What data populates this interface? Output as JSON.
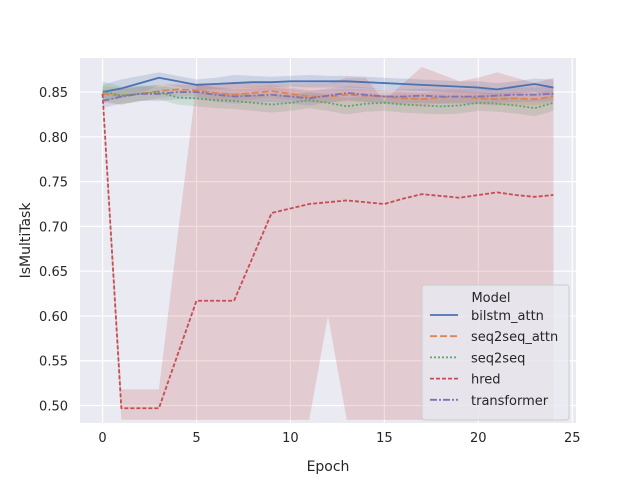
{
  "chart_data": {
    "type": "line",
    "title": "",
    "xlabel": "Epoch",
    "ylabel": "IsMultiTask",
    "xlim": [
      -1.2,
      25.2
    ],
    "ylim": [
      0.4805,
      0.888
    ],
    "xticks": [
      0,
      5,
      10,
      15,
      20,
      25
    ],
    "yticks": [
      0.5,
      0.55,
      0.6,
      0.65,
      0.7,
      0.75,
      0.8,
      0.85
    ],
    "ytick_labels": [
      "0.50",
      "0.55",
      "0.60",
      "0.65",
      "0.70",
      "0.75",
      "0.80",
      "0.85"
    ],
    "grid": true,
    "background": "#eaeaf2",
    "legend": {
      "title": "Model",
      "position": "lower-right"
    },
    "x": [
      0,
      1,
      2,
      3,
      4,
      5,
      6,
      7,
      8,
      9,
      10,
      11,
      12,
      13,
      14,
      15,
      16,
      17,
      18,
      19,
      20,
      21,
      22,
      23,
      24
    ],
    "series": [
      {
        "name": "bilstm_attn",
        "color": "#4c72b0",
        "dash": "",
        "values": [
          0.85,
          0.854,
          0.86,
          0.866,
          0.862,
          0.858,
          0.859,
          0.86,
          0.861,
          0.861,
          0.862,
          0.862,
          0.862,
          0.862,
          0.861,
          0.86,
          0.859,
          0.858,
          0.857,
          0.856,
          0.855,
          0.853,
          0.856,
          0.859,
          0.855
        ],
        "lower": [
          0.84,
          0.843,
          0.848,
          0.858,
          0.856,
          0.852,
          0.853,
          0.854,
          0.855,
          0.855,
          0.856,
          0.855,
          0.855,
          0.855,
          0.854,
          0.853,
          0.852,
          0.851,
          0.85,
          0.849,
          0.848,
          0.846,
          0.848,
          0.85,
          0.846
        ],
        "upper": [
          0.858,
          0.864,
          0.868,
          0.872,
          0.868,
          0.864,
          0.866,
          0.869,
          0.868,
          0.867,
          0.868,
          0.869,
          0.868,
          0.868,
          0.867,
          0.866,
          0.865,
          0.864,
          0.863,
          0.862,
          0.862,
          0.86,
          0.862,
          0.865,
          0.864
        ]
      },
      {
        "name": "seq2seq_attn",
        "color": "#dd8452",
        "dash": "7 3",
        "values": [
          0.848,
          0.846,
          0.848,
          0.851,
          0.853,
          0.852,
          0.849,
          0.847,
          0.849,
          0.851,
          0.848,
          0.845,
          0.845,
          0.847,
          0.846,
          0.845,
          0.843,
          0.842,
          0.844,
          0.845,
          0.843,
          0.842,
          0.843,
          0.842,
          0.845
        ],
        "lower": [
          0.838,
          0.836,
          0.84,
          0.843,
          0.846,
          0.845,
          0.842,
          0.84,
          0.842,
          0.844,
          0.841,
          0.838,
          0.838,
          0.84,
          0.839,
          0.838,
          0.836,
          0.835,
          0.837,
          0.838,
          0.836,
          0.835,
          0.836,
          0.835,
          0.838
        ],
        "upper": [
          0.856,
          0.855,
          0.856,
          0.858,
          0.86,
          0.859,
          0.856,
          0.854,
          0.856,
          0.858,
          0.855,
          0.852,
          0.852,
          0.854,
          0.853,
          0.852,
          0.85,
          0.849,
          0.851,
          0.852,
          0.85,
          0.849,
          0.85,
          0.849,
          0.852
        ]
      },
      {
        "name": "seq2seq",
        "color": "#55a868",
        "dash": "2 2",
        "values": [
          0.851,
          0.846,
          0.848,
          0.85,
          0.844,
          0.843,
          0.841,
          0.84,
          0.838,
          0.836,
          0.838,
          0.841,
          0.838,
          0.834,
          0.837,
          0.838,
          0.836,
          0.835,
          0.834,
          0.835,
          0.838,
          0.837,
          0.835,
          0.832,
          0.838
        ],
        "lower": [
          0.84,
          0.836,
          0.84,
          0.842,
          0.836,
          0.834,
          0.832,
          0.831,
          0.829,
          0.827,
          0.829,
          0.832,
          0.829,
          0.825,
          0.828,
          0.829,
          0.827,
          0.826,
          0.825,
          0.826,
          0.829,
          0.828,
          0.826,
          0.823,
          0.829
        ],
        "upper": [
          0.862,
          0.856,
          0.857,
          0.858,
          0.853,
          0.852,
          0.85,
          0.849,
          0.847,
          0.845,
          0.847,
          0.85,
          0.847,
          0.843,
          0.846,
          0.847,
          0.845,
          0.844,
          0.843,
          0.844,
          0.847,
          0.846,
          0.844,
          0.841,
          0.847
        ]
      },
      {
        "name": "hred",
        "color": "#c44e52",
        "dash": "4 2",
        "values": [
          0.848,
          0.497,
          0.497,
          0.497,
          0.557,
          0.617,
          0.617,
          0.617,
          0.666,
          0.715,
          0.72,
          0.725,
          0.727,
          0.729,
          0.727,
          0.725,
          0.731,
          0.736,
          0.734,
          0.732,
          0.735,
          0.738,
          0.735,
          0.733,
          0.735
        ],
        "lower": [
          0.84,
          0.484,
          0.484,
          0.484,
          0.484,
          0.484,
          0.484,
          0.484,
          0.484,
          0.484,
          0.484,
          0.484,
          0.6,
          0.484,
          0.484,
          0.484,
          0.484,
          0.484,
          0.484,
          0.484,
          0.484,
          0.484,
          0.484,
          0.484,
          0.484
        ],
        "upper": [
          0.856,
          0.518,
          0.518,
          0.518,
          0.69,
          0.86,
          0.86,
          0.86,
          0.86,
          0.86,
          0.86,
          0.86,
          0.86,
          0.866,
          0.866,
          0.84,
          0.86,
          0.878,
          0.87,
          0.862,
          0.866,
          0.872,
          0.866,
          0.86,
          0.866
        ]
      },
      {
        "name": "transformer",
        "color": "#8172b3",
        "dash": "7 2 2 2",
        "values": [
          0.84,
          0.845,
          0.848,
          0.848,
          0.85,
          0.85,
          0.847,
          0.845,
          0.846,
          0.847,
          0.845,
          0.843,
          0.846,
          0.849,
          0.847,
          0.845,
          0.845,
          0.846,
          0.845,
          0.845,
          0.845,
          0.846,
          0.847,
          0.847,
          0.848
        ],
        "lower": [
          0.832,
          0.837,
          0.84,
          0.84,
          0.842,
          0.842,
          0.839,
          0.837,
          0.838,
          0.839,
          0.837,
          0.835,
          0.838,
          0.841,
          0.839,
          0.837,
          0.837,
          0.838,
          0.837,
          0.837,
          0.837,
          0.838,
          0.839,
          0.839,
          0.84
        ],
        "upper": [
          0.848,
          0.853,
          0.856,
          0.856,
          0.858,
          0.858,
          0.855,
          0.853,
          0.854,
          0.855,
          0.853,
          0.851,
          0.854,
          0.857,
          0.855,
          0.853,
          0.853,
          0.854,
          0.853,
          0.853,
          0.853,
          0.854,
          0.855,
          0.855,
          0.856
        ]
      }
    ]
  }
}
